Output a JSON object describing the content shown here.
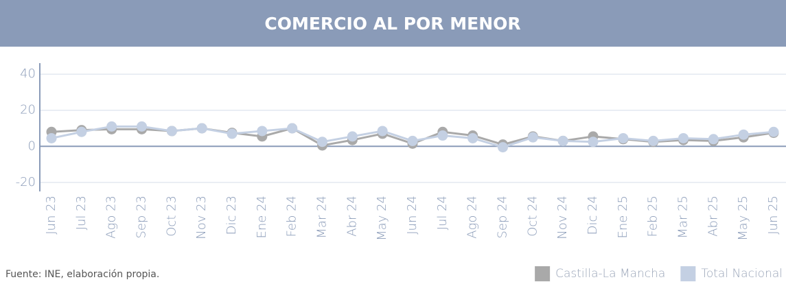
{
  "chart_data": {
    "type": "line",
    "title": "COMERCIO AL POR MENOR",
    "categories": [
      "Jun 23",
      "Jul 23",
      "Ago 23",
      "Sep 23",
      "Oct 23",
      "Nov 23",
      "Dic 23",
      "Ene 24",
      "Feb 24",
      "Mar 24",
      "Abr 24",
      "May 24",
      "Jun 24",
      "Jul 24",
      "Ago 24",
      "Sep 24",
      "Oct 24",
      "Nov 24",
      "Dic 24",
      "Ene 25",
      "Feb 25",
      "Mar 25",
      "Abr 25",
      "May 25",
      "Jun 25"
    ],
    "series": [
      {
        "name": "Castilla-La Mancha",
        "color": "#a9a9a9",
        "values": [
          8,
          9,
          9.5,
          9.5,
          8.5,
          10,
          7.5,
          5.5,
          10,
          0.5,
          3.5,
          7,
          1.5,
          8,
          6,
          1,
          5.5,
          3,
          5.5,
          4,
          2.5,
          3.5,
          3,
          5,
          7.5
        ]
      },
      {
        "name": "Total Nacional",
        "color": "#c4d0e3",
        "values": [
          4.5,
          8,
          11,
          11,
          8.5,
          10,
          7,
          8.5,
          10,
          2.5,
          5.5,
          8.5,
          3,
          6,
          4.5,
          -0.5,
          5,
          3,
          2.5,
          4.5,
          3,
          4.5,
          4,
          6.5,
          8
        ]
      }
    ],
    "ylim": [
      -25,
      45
    ],
    "yticks": [
      -20,
      0,
      20,
      40
    ],
    "grid": true,
    "legend": "bottom-right",
    "source": "Fuente: INE, elaboración propia."
  }
}
